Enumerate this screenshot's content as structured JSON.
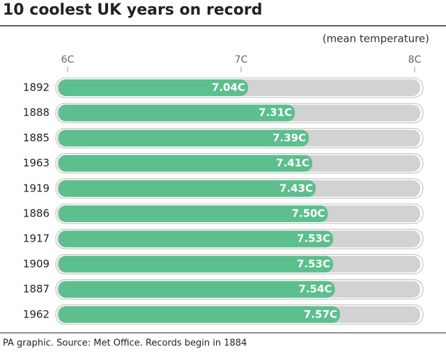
{
  "chart_data": {
    "type": "bar",
    "orientation": "horizontal",
    "title": "10 coolest UK years on record",
    "subtitle": "(mean temperature)",
    "footer": "PA graphic. Source: Met Office. Records begin in 1884",
    "categories": [
      "1892",
      "1888",
      "1885",
      "1963",
      "1919",
      "1886",
      "1917",
      "1909",
      "1887",
      "1962"
    ],
    "values": [
      7.04,
      7.31,
      7.39,
      7.41,
      7.43,
      7.5,
      7.53,
      7.53,
      7.54,
      7.57
    ],
    "value_labels": [
      "7.04C",
      "7.31C",
      "7.39C",
      "7.41C",
      "7.43C",
      "7.50C",
      "7.53C",
      "7.53C",
      "7.54C",
      "7.57C"
    ],
    "color": "#5cbf8d",
    "xlim": [
      6,
      8
    ],
    "xticks": [
      {
        "value": 6,
        "label": "6C"
      },
      {
        "value": 7,
        "label": "7C"
      },
      {
        "value": 8,
        "label": "8C"
      }
    ]
  }
}
